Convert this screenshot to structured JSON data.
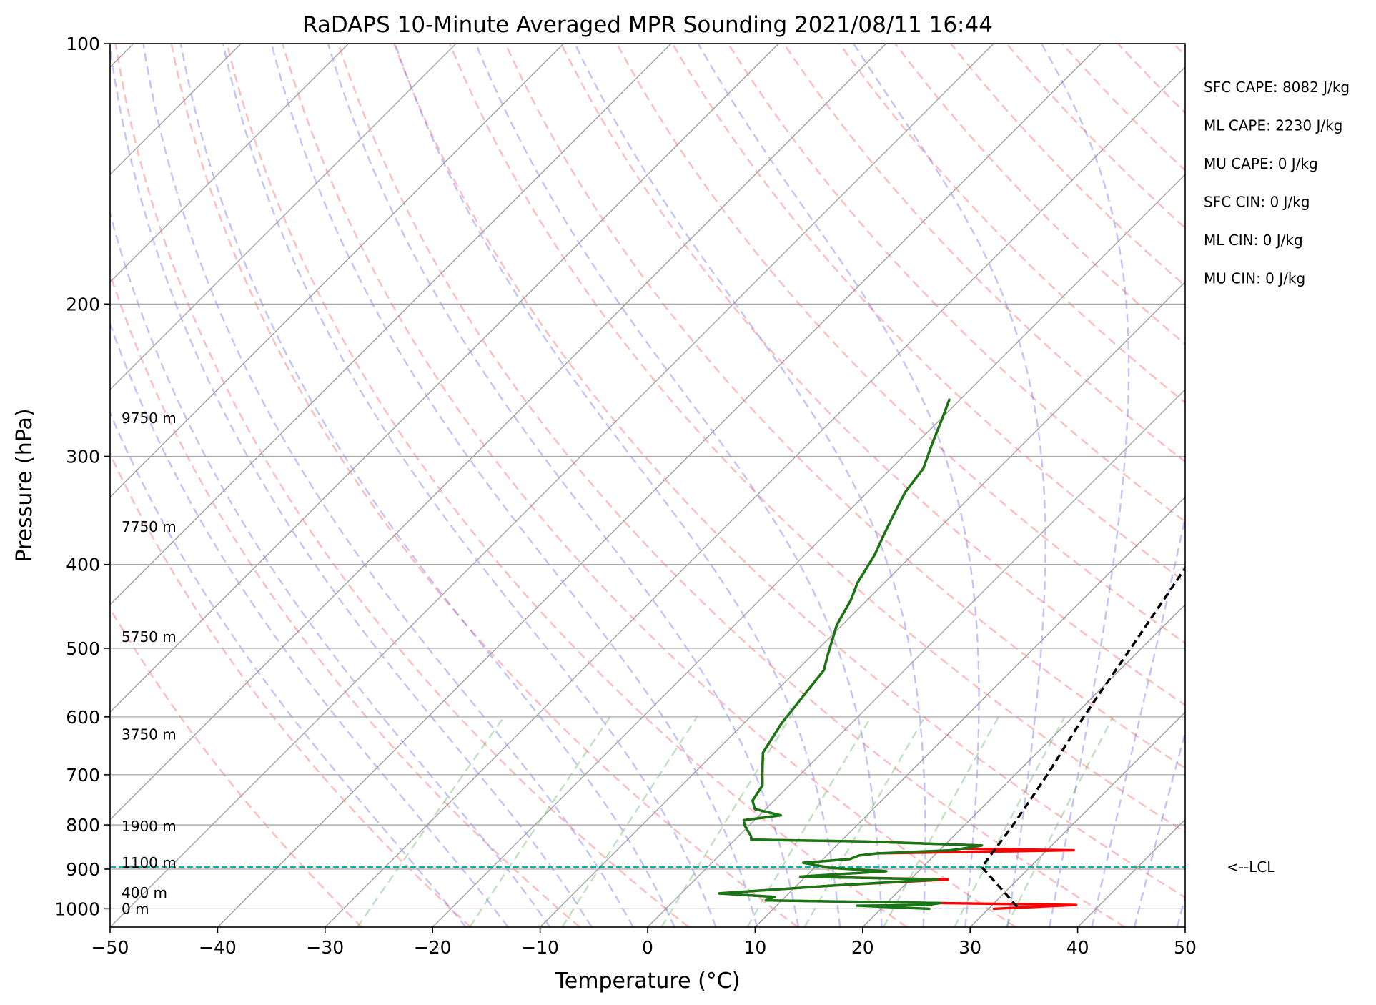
{
  "chart_data": {
    "type": "line",
    "title": "RaDAPS 10-Minute Averaged MPR Sounding 2021/08/11 16:44",
    "xlabel": "Temperature (°C)",
    "ylabel": "Pressure (hPa)",
    "xlim": [
      -50,
      50
    ],
    "ylim": [
      1050,
      100
    ],
    "y_scale": "log",
    "grid": true,
    "x_ticks": [
      -50,
      -40,
      -30,
      -20,
      -10,
      0,
      10,
      20,
      30,
      40,
      50
    ],
    "x_tick_labels": [
      "−50",
      "−40",
      "−30",
      "−20",
      "−10",
      "0",
      "10",
      "20",
      "30",
      "40",
      "50"
    ],
    "y_ticks": [
      100,
      200,
      300,
      400,
      500,
      600,
      700,
      800,
      900,
      1000
    ],
    "y_tick_labels": [
      "100",
      "200",
      "300",
      "400",
      "500",
      "600",
      "700",
      "800",
      "900",
      "1000"
    ],
    "height_labels": [
      {
        "label": "9750 m",
        "p": 271
      },
      {
        "label": "7750 m",
        "p": 362
      },
      {
        "label": "5750 m",
        "p": 485
      },
      {
        "label": "3750 m",
        "p": 629
      },
      {
        "label": "1900 m",
        "p": 803
      },
      {
        "label": "1100 m",
        "p": 885
      },
      {
        "label": "400 m",
        "p": 958
      },
      {
        "label": "0 m",
        "p": 1000
      }
    ],
    "parameters": [
      "SFC CAPE: 8082 J/kg",
      "ML CAPE: 2230 J/kg",
      "MU CAPE: 0 J/kg",
      "SFC CIN: 0 J/kg",
      "ML CIN: 0 J/kg",
      "MU CIN: 0 J/kg"
    ],
    "lcl": {
      "p": 895,
      "label": "<--LCL",
      "color": "#00b4b4"
    },
    "series": [
      {
        "color": "#ff0000",
        "style": "solid",
        "points": [
          [
            1000,
            30.5
          ],
          [
            990,
            37.8
          ],
          [
            985,
            25.0
          ],
          [
            978,
            8.5
          ],
          [
            969,
            9.0
          ],
          [
            960,
            3.5
          ],
          [
            940,
            13.5
          ],
          [
            925,
            23.5
          ],
          [
            918,
            9.5
          ],
          [
            905,
            17.0
          ],
          [
            897,
            11.5
          ],
          [
            885,
            8.5
          ],
          [
            876,
            12.5
          ],
          [
            868,
            13.0
          ],
          [
            863,
            14.5
          ],
          [
            856,
            32.5
          ],
          [
            852,
            22.0
          ],
          [
            845,
            23.5
          ],
          [
            836,
            12.0
          ],
          [
            832,
            1.5
          ],
          [
            825,
            1.2
          ],
          [
            800,
            -0.5
          ],
          [
            790,
            -1.0
          ],
          [
            780,
            2.0
          ],
          [
            767,
            -1.0
          ],
          [
            750,
            -2.0
          ],
          [
            720,
            -2.5
          ],
          [
            700,
            -3.5
          ],
          [
            660,
            -5.5
          ],
          [
            610,
            -6.5
          ],
          [
            530,
            -7.5
          ],
          [
            510,
            -8.5
          ],
          [
            470,
            -10.5
          ],
          [
            440,
            -11.5
          ],
          [
            420,
            -12.5
          ],
          [
            390,
            -13.5
          ],
          [
            370,
            -14.5
          ],
          [
            350,
            -15.5
          ],
          [
            330,
            -16.5
          ],
          [
            310,
            -17.0
          ],
          [
            290,
            -18.5
          ],
          [
            270,
            -20.0
          ],
          [
            258,
            -21.0
          ]
        ]
      },
      {
        "color": "#147814",
        "style": "solid",
        "points": [
          [
            1000,
            24.5
          ],
          [
            992,
            17.5
          ],
          [
            990,
            24.0
          ],
          [
            985,
            25.0
          ],
          [
            978,
            8.5
          ],
          [
            969,
            9.0
          ],
          [
            960,
            3.5
          ],
          [
            940,
            13.5
          ],
          [
            925,
            22.5
          ],
          [
            918,
            9.5
          ],
          [
            905,
            17.0
          ],
          [
            897,
            11.5
          ],
          [
            885,
            8.5
          ],
          [
            876,
            12.5
          ],
          [
            868,
            13.0
          ],
          [
            863,
            14.5
          ],
          [
            856,
            21.0
          ],
          [
            852,
            22.0
          ],
          [
            845,
            23.5
          ],
          [
            836,
            12.0
          ],
          [
            832,
            1.5
          ],
          [
            825,
            1.2
          ],
          [
            800,
            -0.5
          ],
          [
            790,
            -1.0
          ],
          [
            780,
            2.0
          ],
          [
            767,
            -1.0
          ],
          [
            750,
            -2.0
          ],
          [
            720,
            -2.5
          ],
          [
            700,
            -3.5
          ],
          [
            660,
            -5.5
          ],
          [
            610,
            -6.5
          ],
          [
            530,
            -7.5
          ],
          [
            510,
            -8.5
          ],
          [
            470,
            -10.5
          ],
          [
            440,
            -11.5
          ],
          [
            420,
            -12.5
          ],
          [
            390,
            -13.5
          ],
          [
            370,
            -14.5
          ],
          [
            350,
            -15.5
          ],
          [
            330,
            -16.5
          ],
          [
            310,
            -17.0
          ],
          [
            290,
            -18.5
          ],
          [
            270,
            -20.0
          ],
          [
            258,
            -21.0
          ]
        ]
      },
      {
        "color": "#000000",
        "style": "dashed",
        "points": [
          [
            995,
            32.5
          ],
          [
            895,
            25.5
          ],
          [
            800,
            24.5
          ],
          [
            700,
            23.0
          ],
          [
            600,
            21.0
          ],
          [
            500,
            19.0
          ],
          [
            400,
            16.5
          ],
          [
            350,
            14.5
          ],
          [
            300,
            11.0
          ],
          [
            258,
            7.0
          ]
        ]
      }
    ]
  }
}
